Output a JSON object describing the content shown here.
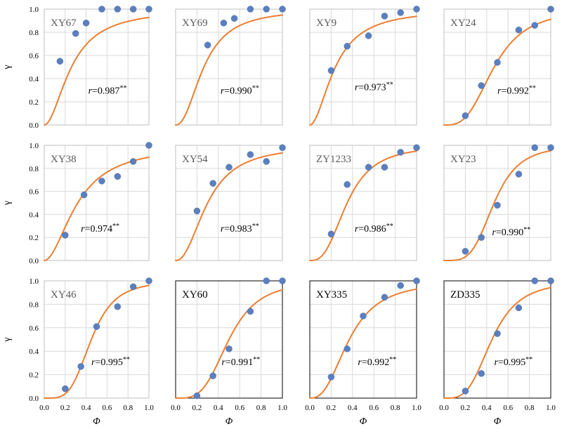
{
  "colors": {
    "fit_line": "#ed7d31",
    "points": "#5b7fbf",
    "grid": "#d9d9d9",
    "title_grey": "#595959",
    "title_dark": "#000000"
  },
  "chart_data": [
    {
      "type": "scatter",
      "title": "XY67",
      "r_value": "0.987",
      "r_sig": "**",
      "n": 1.9,
      "x50": 0.26,
      "x": [
        0.15,
        0.3,
        0.4,
        0.55,
        0.7,
        0.85,
        1.0
      ],
      "y": [
        0.55,
        0.79,
        0.88,
        1.0,
        1.0,
        1.0,
        1.0
      ]
    },
    {
      "type": "scatter",
      "title": "XY69",
      "r_value": "0.990",
      "r_sig": "**",
      "n": 2.2,
      "x50": 0.265,
      "x": [
        0.3,
        0.45,
        0.55,
        0.7,
        0.85,
        1.0
      ],
      "y": [
        0.69,
        0.88,
        0.92,
        1.0,
        1.0,
        1.0
      ]
    },
    {
      "type": "scatter",
      "title": "XY9",
      "r_value": "0.973",
      "r_sig": "**",
      "n": 1.9,
      "x50": 0.24,
      "x": [
        0.2,
        0.35,
        0.55,
        0.7,
        0.85,
        1.0
      ],
      "y": [
        0.47,
        0.68,
        0.77,
        0.94,
        0.97,
        1.0
      ]
    },
    {
      "type": "scatter",
      "title": "XY24",
      "r_value": "0.992",
      "r_sig": "**",
      "n": 3.1,
      "x50": 0.47,
      "x": [
        0.2,
        0.35,
        0.5,
        0.7,
        0.85,
        1.0
      ],
      "y": [
        0.08,
        0.34,
        0.54,
        0.82,
        0.86,
        1.0
      ]
    },
    {
      "type": "scatter",
      "title": "XY38",
      "r_value": "0.974",
      "r_sig": "**",
      "n": 1.9,
      "x50": 0.32,
      "x": [
        0.2,
        0.38,
        0.55,
        0.7,
        0.85,
        1.0
      ],
      "y": [
        0.22,
        0.57,
        0.69,
        0.73,
        0.86,
        1.0
      ]
    },
    {
      "type": "scatter",
      "title": "XY54",
      "r_value": "0.983",
      "r_sig": "**",
      "n": 2.2,
      "x50": 0.3,
      "x": [
        0.2,
        0.35,
        0.5,
        0.7,
        0.85,
        1.0
      ],
      "y": [
        0.43,
        0.67,
        0.81,
        0.92,
        0.86,
        0.98
      ]
    },
    {
      "type": "scatter",
      "title": "ZY1233",
      "r_value": "0.986",
      "r_sig": "**",
      "n": 2.8,
      "x50": 0.35,
      "x": [
        0.2,
        0.35,
        0.55,
        0.7,
        0.85,
        1.0
      ],
      "y": [
        0.23,
        0.66,
        0.81,
        0.81,
        0.94,
        0.98
      ]
    },
    {
      "type": "scatter",
      "title": "XY23",
      "r_value": "0.990",
      "r_sig": "**",
      "n": 4.0,
      "x50": 0.47,
      "x": [
        0.2,
        0.35,
        0.5,
        0.7,
        0.85,
        1.0
      ],
      "y": [
        0.08,
        0.2,
        0.48,
        0.75,
        0.98,
        0.98
      ]
    },
    {
      "type": "scatter",
      "title": "XY46",
      "r_value": "0.995",
      "r_sig": "**",
      "n": 4.0,
      "x50": 0.45,
      "x": [
        0.2,
        0.35,
        0.5,
        0.7,
        0.85,
        1.0
      ],
      "y": [
        0.08,
        0.27,
        0.61,
        0.78,
        0.95,
        1.0
      ]
    },
    {
      "type": "scatter",
      "title": "XY60",
      "r_value": "0.991",
      "r_sig": "**",
      "n": 3.6,
      "x50": 0.5,
      "x": [
        0.2,
        0.35,
        0.5,
        0.7,
        0.85,
        1.0
      ],
      "y": [
        0.02,
        0.19,
        0.42,
        0.74,
        1.0,
        1.0
      ]
    },
    {
      "type": "scatter",
      "title": "XY335",
      "r_value": "0.992",
      "r_sig": "**",
      "n": 2.6,
      "x50": 0.37,
      "x": [
        0.2,
        0.35,
        0.5,
        0.7,
        0.85,
        1.0
      ],
      "y": [
        0.18,
        0.42,
        0.7,
        0.86,
        0.96,
        1.0
      ]
    },
    {
      "type": "scatter",
      "title": "ZD335",
      "r_value": "0.995",
      "r_sig": "**",
      "n": 3.5,
      "x50": 0.45,
      "x": [
        0.2,
        0.35,
        0.5,
        0.7,
        0.85,
        1.0
      ],
      "y": [
        0.06,
        0.21,
        0.55,
        0.77,
        1.0,
        1.0
      ]
    }
  ],
  "axes": {
    "xlabel": "Φ",
    "ylabel": "γ",
    "xlim": [
      0.0,
      1.0
    ],
    "ylim": [
      0.0,
      1.0
    ],
    "x_ticks": [
      "0.0",
      "0.2",
      "0.4",
      "0.6",
      "0.8",
      "1.0"
    ],
    "y_ticks": [
      "0.0",
      "0.2",
      "0.4",
      "0.6",
      "0.8",
      "1.0"
    ],
    "grid": true
  }
}
